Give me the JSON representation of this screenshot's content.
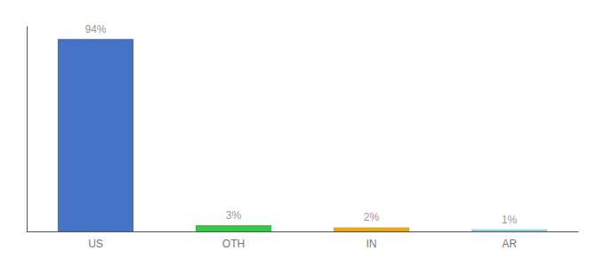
{
  "chart_data": {
    "type": "bar",
    "categories": [
      "US",
      "OTH",
      "IN",
      "AR"
    ],
    "values": [
      94,
      3,
      2,
      1
    ],
    "value_labels": [
      "94%",
      "3%",
      "2%",
      "1%"
    ],
    "colors": [
      "#4472c4",
      "#2ecc40",
      "#f0a500",
      "#87ceeb"
    ],
    "ylim": [
      0,
      100
    ],
    "grid": false,
    "data_labels": true,
    "tick_labels": "x"
  }
}
